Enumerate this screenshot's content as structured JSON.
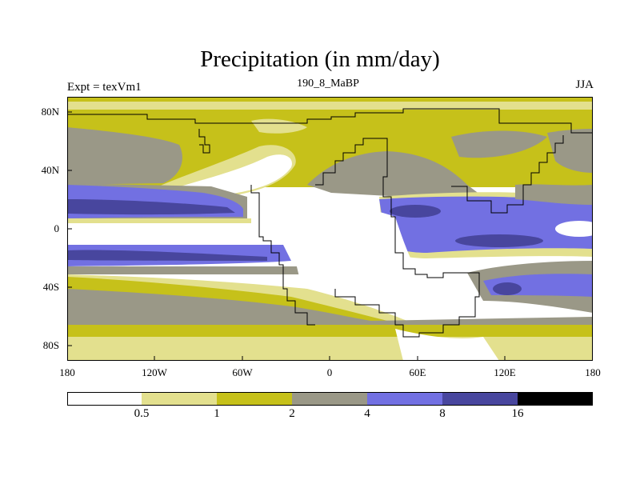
{
  "title": "Precipitation (in mm/day)",
  "left_label": "Expt = texVm1",
  "center_label": "190_8_MaBP",
  "right_label": "JJA",
  "lat_ticks": [
    "80N",
    "40N",
    "0",
    "40S",
    "80S"
  ],
  "lon_ticks": [
    "180",
    "120W",
    "60W",
    "0",
    "60E",
    "120E",
    "180"
  ],
  "colorbar": {
    "levels": [
      "0.5",
      "1",
      "2",
      "4",
      "8",
      "16"
    ],
    "colors": [
      "#ffffff",
      "#e3e08e",
      "#c6c11a",
      "#9a9887",
      "#7270e2",
      "#48469e",
      "#000000"
    ]
  },
  "chart_data": {
    "type": "heatmap",
    "title": "Precipitation (in mm/day)",
    "variable": "Precipitation",
    "units": "mm/day",
    "experiment": "texVm1",
    "period": "190_8_MaBP",
    "season": "JJA",
    "xlim": [
      -180,
      180
    ],
    "ylim": [
      -90,
      90
    ],
    "contour_levels": [
      0.5,
      1,
      2,
      4,
      8,
      16
    ]
  }
}
